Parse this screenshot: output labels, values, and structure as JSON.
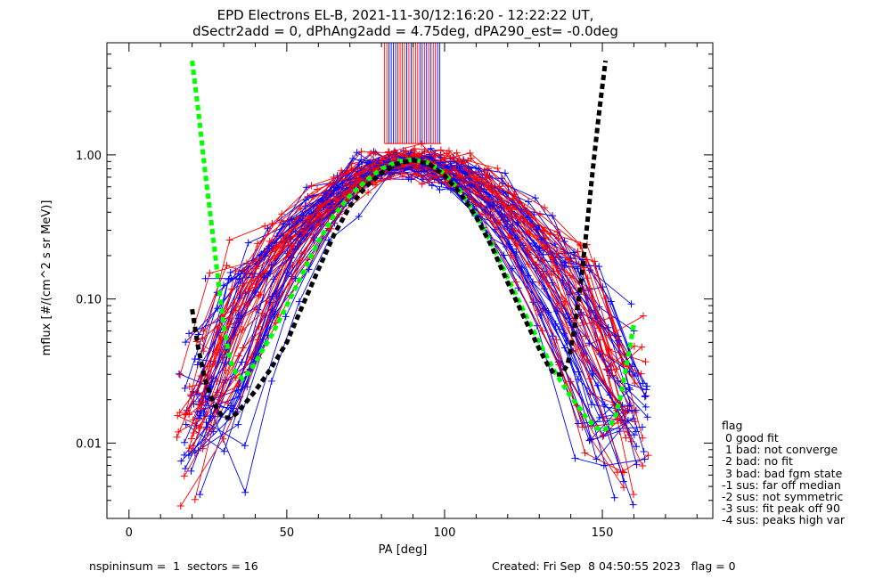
{
  "chart_data": {
    "type": "line",
    "title": "EPD Electrons EL-B, 2021-11-30/12:16:20 - 12:22:22 UT,",
    "subtitle": "dSectr2add = 0, dPhAng2add = 4.75deg, dPA290_est=  -0.0deg",
    "xlabel": "PA [deg]",
    "ylabel": "mflux [#/(cm^2 s sr MeV)]",
    "xlim": [
      -7,
      185
    ],
    "ylim": [
      0.003,
      6.0
    ],
    "yscale": "log",
    "xticks": [
      0,
      50,
      100,
      150
    ],
    "yticks": [
      {
        "value": 0.01,
        "label": "0.01"
      },
      {
        "value": 0.1,
        "label": "0.10"
      },
      {
        "value": 1.0,
        "label": "1.00"
      }
    ],
    "grid": false,
    "colors": {
      "red": "#ff0000",
      "blue": "#0000ff",
      "green": "#00ff00",
      "black": "#000000"
    },
    "fits": [
      {
        "name": "green-fit",
        "color": "#00ff00",
        "points": [
          [
            20,
            4.5
          ],
          [
            22,
            2.0
          ],
          [
            24,
            0.8
          ],
          [
            26,
            0.35
          ],
          [
            28,
            0.15
          ],
          [
            30,
            0.065
          ],
          [
            32,
            0.038
          ],
          [
            34,
            0.03
          ],
          [
            36,
            0.028
          ],
          [
            38,
            0.031
          ],
          [
            40,
            0.036
          ],
          [
            42,
            0.043
          ],
          [
            45,
            0.055
          ],
          [
            50,
            0.09
          ],
          [
            55,
            0.15
          ],
          [
            60,
            0.25
          ],
          [
            65,
            0.38
          ],
          [
            70,
            0.52
          ],
          [
            75,
            0.66
          ],
          [
            80,
            0.8
          ],
          [
            85,
            0.9
          ],
          [
            90,
            0.93
          ],
          [
            95,
            0.88
          ],
          [
            100,
            0.74
          ],
          [
            105,
            0.56
          ],
          [
            110,
            0.38
          ],
          [
            115,
            0.24
          ],
          [
            120,
            0.14
          ],
          [
            125,
            0.083
          ],
          [
            130,
            0.05
          ],
          [
            135,
            0.031
          ],
          [
            140,
            0.021
          ],
          [
            145,
            0.015
          ],
          [
            148,
            0.0128
          ],
          [
            150,
            0.0122
          ],
          [
            152,
            0.0128
          ],
          [
            154,
            0.015
          ],
          [
            156,
            0.022
          ],
          [
            158,
            0.038
          ],
          [
            160,
            0.068
          ]
        ]
      },
      {
        "name": "black-fit",
        "color": "#000000",
        "points": [
          [
            20,
            0.085
          ],
          [
            22,
            0.045
          ],
          [
            24,
            0.028
          ],
          [
            26,
            0.021
          ],
          [
            28,
            0.017
          ],
          [
            30,
            0.015
          ],
          [
            32,
            0.015
          ],
          [
            34,
            0.016
          ],
          [
            36,
            0.018
          ],
          [
            40,
            0.023
          ],
          [
            45,
            0.033
          ],
          [
            50,
            0.05
          ],
          [
            55,
            0.09
          ],
          [
            60,
            0.16
          ],
          [
            65,
            0.28
          ],
          [
            70,
            0.44
          ],
          [
            75,
            0.6
          ],
          [
            80,
            0.75
          ],
          [
            85,
            0.87
          ],
          [
            90,
            0.92
          ],
          [
            95,
            0.87
          ],
          [
            100,
            0.72
          ],
          [
            105,
            0.54
          ],
          [
            110,
            0.37
          ],
          [
            115,
            0.23
          ],
          [
            120,
            0.13
          ],
          [
            125,
            0.076
          ],
          [
            130,
            0.045
          ],
          [
            133,
            0.034
          ],
          [
            135,
            0.03
          ],
          [
            137,
            0.03
          ],
          [
            139,
            0.035
          ],
          [
            141,
            0.06
          ],
          [
            143,
            0.12
          ],
          [
            145,
            0.3
          ],
          [
            147,
            0.8
          ],
          [
            149,
            2.0
          ],
          [
            151,
            4.5
          ]
        ]
      }
    ],
    "legend": {
      "title": "flag",
      "entries": [
        " 0 good fit",
        " 1 bad: not converge",
        " 2 bad: no fit",
        " 3 bad: bad fgm state",
        "-1 sus: far off median",
        "-2 sus: not symmetric",
        "-3 sus: fit peak off 90",
        "-4 sus: peaks high var"
      ],
      "placement": "outside-right-bottom"
    },
    "footer": {
      "left": "nspininsum =  1  sectors = 16",
      "right": "Created: Fri Sep  8 04:50:55 2023   flag = 0"
    }
  }
}
